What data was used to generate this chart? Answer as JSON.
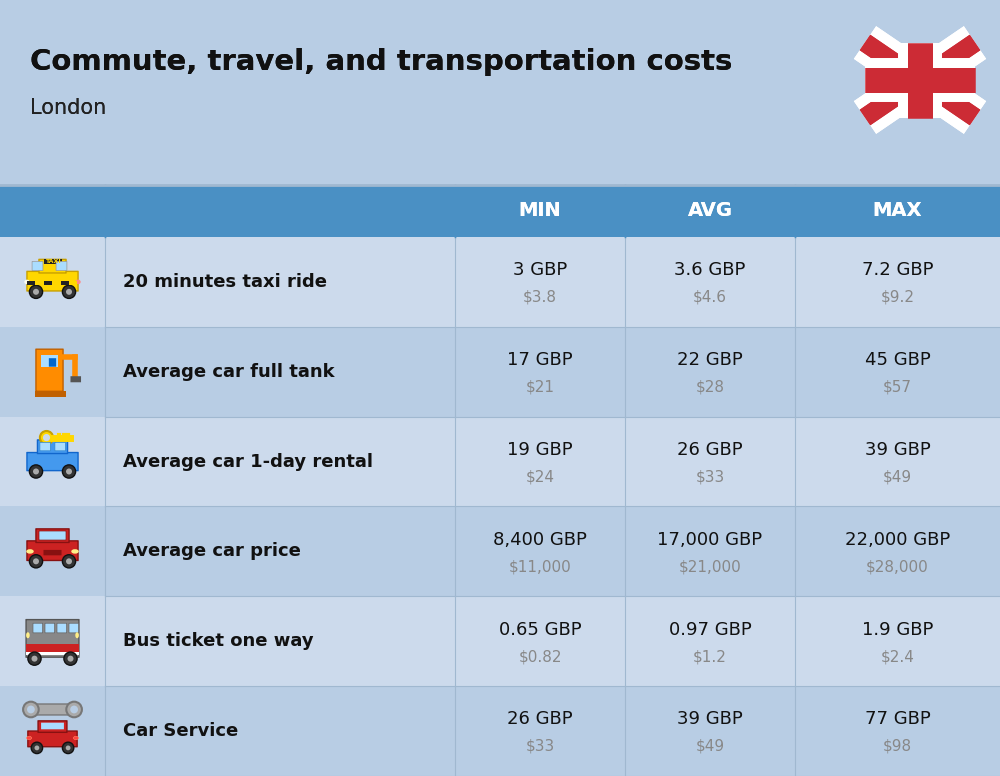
{
  "title": "Commute, travel, and transportation costs",
  "subtitle": "London",
  "header_bg": "#4a90c4",
  "header_text_color": "#ffffff",
  "bg_color": "#b8cde4",
  "row_bg_even": "#ccdaec",
  "row_bg_odd": "#b8cde4",
  "sep_color": "#a0b8d0",
  "header_labels": [
    "MIN",
    "AVG",
    "MAX"
  ],
  "rows": [
    {
      "label": "20 minutes taxi ride",
      "min_gbp": "3 GBP",
      "min_usd": "$3.8",
      "avg_gbp": "3.6 GBP",
      "avg_usd": "$4.6",
      "max_gbp": "7.2 GBP",
      "max_usd": "$9.2"
    },
    {
      "label": "Average car full tank",
      "min_gbp": "17 GBP",
      "min_usd": "$21",
      "avg_gbp": "22 GBP",
      "avg_usd": "$28",
      "max_gbp": "45 GBP",
      "max_usd": "$57"
    },
    {
      "label": "Average car 1-day rental",
      "min_gbp": "19 GBP",
      "min_usd": "$24",
      "avg_gbp": "26 GBP",
      "avg_usd": "$33",
      "max_gbp": "39 GBP",
      "max_usd": "$49"
    },
    {
      "label": "Average car price",
      "min_gbp": "8,400 GBP",
      "min_usd": "$11,000",
      "avg_gbp": "17,000 GBP",
      "avg_usd": "$21,000",
      "max_gbp": "22,000 GBP",
      "max_usd": "$28,000"
    },
    {
      "label": "Bus ticket one way",
      "min_gbp": "0.65 GBP",
      "min_usd": "$0.82",
      "avg_gbp": "0.97 GBP",
      "avg_usd": "$1.2",
      "max_gbp": "1.9 GBP",
      "max_usd": "$2.4"
    },
    {
      "label": "Car Service",
      "min_gbp": "26 GBP",
      "min_usd": "$33",
      "avg_gbp": "39 GBP",
      "avg_usd": "$49",
      "max_gbp": "77 GBP",
      "max_usd": "$98"
    }
  ]
}
